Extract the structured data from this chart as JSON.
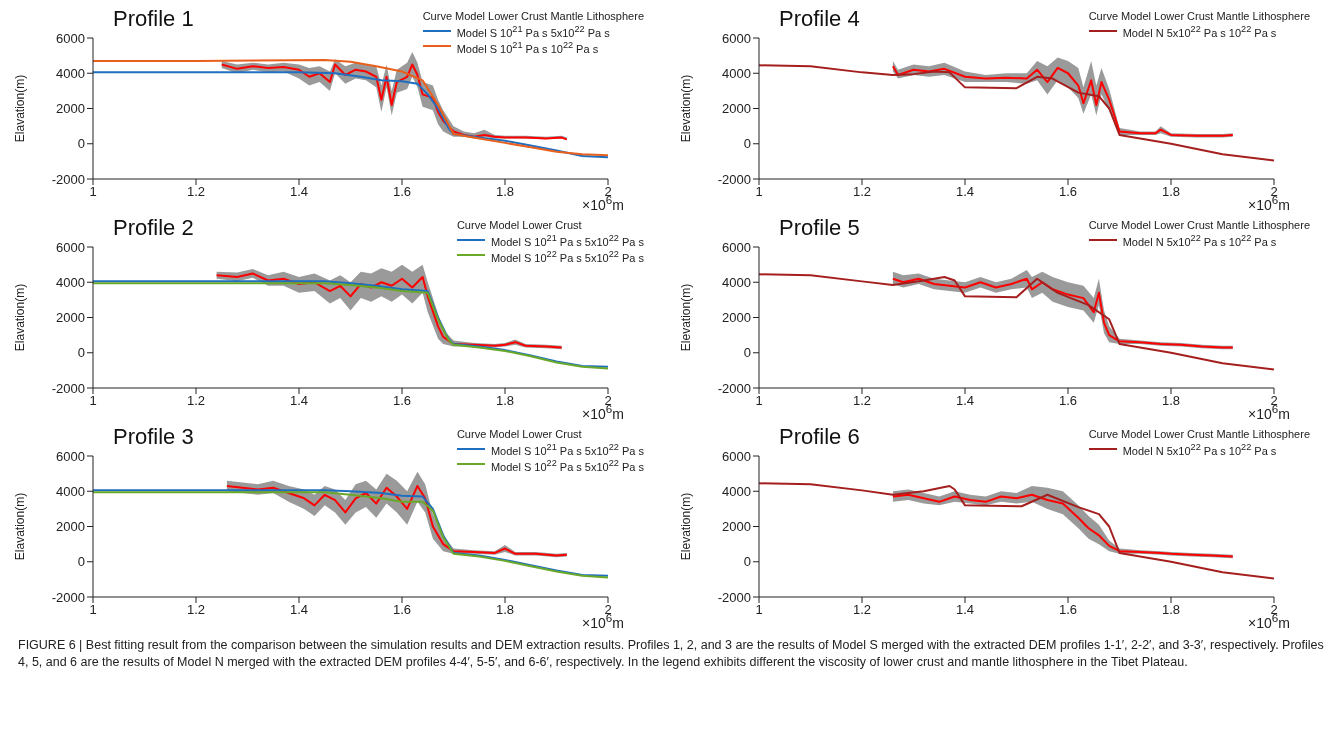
{
  "chart_data": [
    {
      "type": "line",
      "title": "Profile 1",
      "xlabel": "×10$^{6}$m",
      "ylabel": "Elavation(m)",
      "legend_title": "Curve Model Lower Crust Mantle Lithosphere",
      "legend": "top right",
      "xlim": [
        1,
        2
      ],
      "xticks": [
        1,
        1.2,
        1.4,
        1.6,
        1.8,
        2
      ],
      "ylim": [
        -2000,
        6000
      ],
      "yticks": [
        -2000,
        0,
        2000,
        4000,
        6000
      ],
      "series": [
        {
          "color": "#ff0000",
          "x": [
            1.25,
            1.28,
            1.31,
            1.34,
            1.37,
            1.4,
            1.42,
            1.44,
            1.46,
            1.47,
            1.49,
            1.51,
            1.53,
            1.55,
            1.56,
            1.57,
            1.58,
            1.59,
            1.61,
            1.62,
            1.63,
            1.64,
            1.66,
            1.67,
            1.68,
            1.7,
            1.72,
            1.74,
            1.76,
            1.78,
            1.8,
            1.84,
            1.88,
            1.91,
            1.92
          ],
          "values": [
            4500,
            4250,
            4400,
            4300,
            4350,
            4200,
            3800,
            4000,
            3500,
            4500,
            3900,
            4200,
            4100,
            3800,
            2500,
            3800,
            2200,
            3500,
            3800,
            4500,
            3900,
            2800,
            2600,
            1800,
            1300,
            700,
            500,
            400,
            500,
            400,
            350,
            350,
            300,
            350,
            250
          ],
          "lower": [
            4300,
            4000,
            4200,
            4050,
            4100,
            3700,
            3300,
            3500,
            3000,
            4000,
            3400,
            3700,
            3600,
            3200,
            1800,
            3200,
            1600,
            2900,
            3100,
            3800,
            3200,
            2100,
            1900,
            1100,
            700,
            400,
            400,
            300,
            400,
            300,
            300,
            300,
            250,
            300,
            200
          ],
          "upper": [
            4700,
            4500,
            4600,
            4500,
            4600,
            4500,
            4300,
            4400,
            4100,
            4800,
            4400,
            4600,
            4500,
            4400,
            3300,
            4500,
            3000,
            4200,
            4600,
            5200,
            4600,
            3500,
            3300,
            2500,
            1900,
            1000,
            700,
            600,
            800,
            500,
            450,
            450,
            400,
            450,
            350
          ]
        },
        {
          "name": "Model S 10$^{21}$ Pa s 5x10$^{22}$ Pa s",
          "color": "#1f6fc0",
          "x": [
            1,
            1.2,
            1.4,
            1.47,
            1.52,
            1.56,
            1.6,
            1.63,
            1.65,
            1.67,
            1.69,
            1.7,
            1.75,
            1.8,
            1.85,
            1.9,
            1.95,
            2
          ],
          "values": [
            4050,
            4050,
            4050,
            4000,
            3800,
            3600,
            3550,
            3400,
            2800,
            2000,
            900,
            550,
            350,
            170,
            -100,
            -380,
            -700,
            -760
          ]
        },
        {
          "name": "Model S 10$^{21}$ Pa s 10$^{22}$ Pa s",
          "color": "#e8601c",
          "x": [
            1,
            1.2,
            1.45,
            1.5,
            1.55,
            1.6,
            1.64,
            1.67,
            1.7,
            1.75,
            1.8,
            1.85,
            1.9,
            1.95,
            2
          ],
          "values": [
            4700,
            4700,
            4750,
            4650,
            4400,
            4100,
            3600,
            2200,
            550,
            300,
            50,
            -200,
            -450,
            -600,
            -650
          ]
        }
      ]
    },
    {
      "type": "line",
      "title": "Profile 2",
      "xlabel": "×10$^{6}$m",
      "ylabel": "Elavation(m)",
      "legend_title": "Curve Model Lower Crust",
      "legend": "top right",
      "xlim": [
        1,
        2
      ],
      "xticks": [
        1,
        1.2,
        1.4,
        1.6,
        1.8,
        2
      ],
      "ylim": [
        -2000,
        6000
      ],
      "yticks": [
        -2000,
        0,
        2000,
        4000,
        6000
      ],
      "series": [
        {
          "color": "#ff0000",
          "x": [
            1.24,
            1.28,
            1.31,
            1.34,
            1.37,
            1.4,
            1.43,
            1.46,
            1.48,
            1.5,
            1.52,
            1.54,
            1.56,
            1.58,
            1.6,
            1.62,
            1.64,
            1.65,
            1.67,
            1.68,
            1.7,
            1.74,
            1.78,
            1.8,
            1.82,
            1.84,
            1.88,
            1.91
          ],
          "values": [
            4400,
            4300,
            4500,
            4100,
            4200,
            3900,
            4000,
            3500,
            3800,
            3200,
            3900,
            3700,
            4000,
            3800,
            4200,
            3700,
            4300,
            3200,
            1500,
            900,
            500,
            450,
            400,
            450,
            600,
            400,
            350,
            300
          ],
          "lower": [
            4200,
            4050,
            4250,
            3800,
            3800,
            3400,
            3500,
            2800,
            3100,
            2400,
            3100,
            2900,
            3200,
            2900,
            3300,
            2800,
            3400,
            2300,
            800,
            500,
            350,
            350,
            300,
            350,
            450,
            300,
            250,
            200
          ],
          "upper": [
            4600,
            4550,
            4750,
            4400,
            4600,
            4300,
            4500,
            4100,
            4400,
            4000,
            4600,
            4500,
            4800,
            4600,
            5000,
            4600,
            5000,
            4000,
            2200,
            1300,
            700,
            550,
            500,
            550,
            750,
            500,
            450,
            400
          ]
        },
        {
          "name": "Model S 10$^{21}$ Pa s 5x10$^{22}$ Pa s",
          "color": "#1f6fc0",
          "x": [
            1,
            1.2,
            1.45,
            1.5,
            1.55,
            1.6,
            1.65,
            1.67,
            1.69,
            1.7,
            1.75,
            1.8,
            1.85,
            1.9,
            1.95,
            2
          ],
          "values": [
            4050,
            4050,
            4050,
            3950,
            3800,
            3600,
            3500,
            2000,
            800,
            500,
            350,
            150,
            -150,
            -500,
            -750,
            -800
          ]
        },
        {
          "name": "Model S 10$^{22}$ Pa s 5x10$^{22}$ Pa s",
          "color": "#6aa82a",
          "x": [
            1,
            1.2,
            1.45,
            1.5,
            1.55,
            1.6,
            1.65,
            1.67,
            1.69,
            1.7,
            1.75,
            1.8,
            1.85,
            1.9,
            1.95,
            2
          ],
          "values": [
            3950,
            3950,
            3950,
            3850,
            3700,
            3500,
            3400,
            1900,
            750,
            450,
            300,
            100,
            -200,
            -550,
            -800,
            -900
          ]
        }
      ]
    },
    {
      "type": "line",
      "title": "Profile 3",
      "xlabel": "×10$^{6}$m",
      "ylabel": "Elavation(m)",
      "legend_title": "Curve Model Lower Crust",
      "legend": "top right",
      "xlim": [
        1,
        2
      ],
      "xticks": [
        1,
        1.2,
        1.4,
        1.6,
        1.8,
        2
      ],
      "ylim": [
        -2000,
        6000
      ],
      "yticks": [
        -2000,
        0,
        2000,
        4000,
        6000
      ],
      "series": [
        {
          "color": "#ff0000",
          "x": [
            1.26,
            1.29,
            1.32,
            1.35,
            1.38,
            1.41,
            1.43,
            1.45,
            1.47,
            1.49,
            1.51,
            1.53,
            1.55,
            1.57,
            1.59,
            1.61,
            1.63,
            1.645,
            1.66,
            1.68,
            1.7,
            1.74,
            1.78,
            1.8,
            1.82,
            1.86,
            1.9,
            1.92
          ],
          "values": [
            4300,
            4200,
            4100,
            4200,
            3900,
            3600,
            3200,
            3800,
            3500,
            2800,
            3600,
            3900,
            3300,
            4200,
            3700,
            3000,
            4300,
            3600,
            2000,
            1000,
            600,
            550,
            500,
            750,
            450,
            450,
            350,
            400
          ],
          "lower": [
            4000,
            3900,
            3800,
            3900,
            3400,
            3000,
            2600,
            3200,
            2800,
            2100,
            2800,
            3100,
            2500,
            3300,
            2800,
            2100,
            3400,
            2800,
            1300,
            600,
            450,
            450,
            400,
            550,
            350,
            350,
            250,
            300
          ],
          "upper": [
            4600,
            4500,
            4400,
            4600,
            4300,
            4100,
            3800,
            4300,
            4100,
            3500,
            4400,
            4600,
            4100,
            5000,
            4600,
            4000,
            5100,
            4400,
            2700,
            1500,
            750,
            650,
            600,
            950,
            550,
            550,
            450,
            500
          ]
        },
        {
          "name": "Model S 10$^{21}$ Pa s 5x10$^{22}$ Pa s",
          "color": "#1f6fc0",
          "x": [
            1,
            1.2,
            1.45,
            1.5,
            1.56,
            1.6,
            1.64,
            1.66,
            1.68,
            1.7,
            1.75,
            1.8,
            1.85,
            1.9,
            1.95,
            2
          ],
          "values": [
            4050,
            4050,
            4050,
            4000,
            3900,
            3750,
            3700,
            3000,
            1500,
            500,
            350,
            100,
            -200,
            -500,
            -750,
            -800
          ]
        },
        {
          "name": "Model S 10$^{22}$ Pa s 5x10$^{22}$ Pa s",
          "color": "#6aa82a",
          "x": [
            1,
            1.2,
            1.45,
            1.5,
            1.56,
            1.6,
            1.64,
            1.66,
            1.68,
            1.7,
            1.75,
            1.8,
            1.85,
            1.9,
            1.95,
            2
          ],
          "values": [
            3950,
            3950,
            3950,
            3800,
            3600,
            3400,
            3400,
            2900,
            1400,
            450,
            300,
            50,
            -250,
            -550,
            -800,
            -900
          ]
        }
      ]
    },
    {
      "type": "line",
      "title": "Profile 4",
      "xlabel": "×10$^{6}$m",
      "ylabel": "Elevation(m)",
      "legend_title": "Curve Model Lower Crust Mantle Lithosphere",
      "legend": "top right",
      "xlim": [
        1,
        2
      ],
      "xticks": [
        1,
        1.2,
        1.4,
        1.6,
        1.8,
        2
      ],
      "ylim": [
        -2000,
        6000
      ],
      "yticks": [
        -2000,
        0,
        2000,
        4000,
        6000
      ],
      "series": [
        {
          "color": "#ff0000",
          "x": [
            1.26,
            1.27,
            1.3,
            1.33,
            1.36,
            1.4,
            1.44,
            1.48,
            1.52,
            1.54,
            1.56,
            1.58,
            1.6,
            1.62,
            1.63,
            1.645,
            1.655,
            1.665,
            1.68,
            1.7,
            1.74,
            1.77,
            1.78,
            1.8,
            1.85,
            1.9,
            1.92
          ],
          "values": [
            4400,
            3900,
            4200,
            4100,
            4250,
            3800,
            3700,
            3750,
            3700,
            4200,
            3500,
            4300,
            4000,
            3300,
            2300,
            3600,
            2200,
            3500,
            2500,
            700,
            600,
            600,
            800,
            500,
            450,
            450,
            500
          ],
          "lower": [
            4100,
            3700,
            3900,
            3800,
            3900,
            3500,
            3500,
            3500,
            3400,
            3600,
            2800,
            3600,
            3200,
            2600,
            1700,
            2800,
            1600,
            2800,
            1900,
            500,
            500,
            500,
            600,
            400,
            350,
            350,
            400
          ],
          "upper": [
            4700,
            4200,
            4500,
            4400,
            4600,
            4100,
            3900,
            4000,
            4000,
            4700,
            4400,
            4900,
            4700,
            4300,
            3200,
            4700,
            3300,
            4300,
            3100,
            900,
            700,
            700,
            1000,
            600,
            550,
            550,
            600
          ]
        },
        {
          "name": "Model N 5x10$^{22}$ Pa s 10$^{22}$ Pa s",
          "color": "#a51f1f",
          "x": [
            1,
            1.1,
            1.2,
            1.26,
            1.3,
            1.34,
            1.37,
            1.4,
            1.5,
            1.54,
            1.57,
            1.62,
            1.66,
            1.68,
            1.7,
            1.8,
            1.9,
            2
          ],
          "values": [
            4450,
            4400,
            4050,
            3900,
            3950,
            4100,
            4050,
            3200,
            3150,
            3800,
            3700,
            2900,
            2700,
            2000,
            500,
            0,
            -600,
            -950
          ]
        }
      ]
    },
    {
      "type": "line",
      "title": "Profile 5",
      "xlabel": "×10$^{6}$m",
      "ylabel": "Elevation(m)",
      "legend_title": "Curve Model Lower Crust Mantle Lithosphere",
      "legend": "top right",
      "xlim": [
        1,
        2
      ],
      "xticks": [
        1,
        1.2,
        1.4,
        1.6,
        1.8,
        2
      ],
      "ylim": [
        -2000,
        6000
      ],
      "yticks": [
        -2000,
        0,
        2000,
        4000,
        6000
      ],
      "series": [
        {
          "color": "#ff0000",
          "x": [
            1.26,
            1.28,
            1.31,
            1.34,
            1.37,
            1.4,
            1.43,
            1.46,
            1.49,
            1.52,
            1.53,
            1.55,
            1.57,
            1.6,
            1.63,
            1.65,
            1.66,
            1.67,
            1.68,
            1.7,
            1.74,
            1.78,
            1.82,
            1.86,
            1.9,
            1.92
          ],
          "values": [
            4200,
            4000,
            4200,
            3900,
            3800,
            3700,
            4000,
            3700,
            3900,
            4200,
            3600,
            4000,
            3600,
            3300,
            3100,
            2300,
            3400,
            1700,
            1000,
            650,
            600,
            500,
            450,
            350,
            300,
            300
          ],
          "lower": [
            3900,
            3700,
            3900,
            3600,
            3500,
            3400,
            3700,
            3400,
            3600,
            3700,
            3100,
            3400,
            2900,
            2600,
            2400,
            1700,
            2700,
            1100,
            600,
            500,
            500,
            400,
            350,
            250,
            200,
            200
          ],
          "upper": [
            4600,
            4400,
            4500,
            4200,
            4100,
            4000,
            4300,
            4000,
            4200,
            4700,
            4300,
            4600,
            4300,
            4000,
            3800,
            3100,
            4200,
            2400,
            1500,
            800,
            700,
            600,
            550,
            450,
            400,
            400
          ]
        },
        {
          "name": "Model N 5x10$^{22}$ Pa s 10$^{22}$ Pa s",
          "color": "#a51f1f",
          "x": [
            1,
            1.1,
            1.2,
            1.26,
            1.32,
            1.36,
            1.38,
            1.4,
            1.5,
            1.54,
            1.58,
            1.64,
            1.68,
            1.7,
            1.8,
            1.9,
            2
          ],
          "values": [
            4450,
            4400,
            4050,
            3850,
            4100,
            4300,
            4100,
            3200,
            3150,
            4200,
            3400,
            2700,
            1900,
            500,
            0,
            -600,
            -950
          ]
        }
      ]
    },
    {
      "type": "line",
      "title": "Profile 6",
      "xlabel": "×10$^{6}$m",
      "ylabel": "Elevation(m)",
      "legend_title": "Curve Model Lower Crust Mantle Lithosphere",
      "legend": "top right",
      "xlim": [
        1,
        2
      ],
      "xticks": [
        1,
        1.2,
        1.4,
        1.6,
        1.8,
        2
      ],
      "ylim": [
        -2000,
        6000
      ],
      "yticks": [
        -2000,
        0,
        2000,
        4000,
        6000
      ],
      "annotations": [
        "FIGURE 6 | Best fitting result from the comparison between the simulation results and DEM extraction results. Profiles 1, 2, and 3 are the results of Model S merged with the extracted DEM profiles 1-1′, 2-2′, and 3-3′, respectively. Profiles 4, 5, and 6 are the results of Model N merged with the extracted DEM profiles 4-4′, 5-5′, and 6-6′, respectively. In the legend exhibits different the viscosity of lower crust and mantle lithosphere in the Tibet Plateau."
      ],
      "series": [
        {
          "color": "#ff0000",
          "x": [
            1.26,
            1.29,
            1.32,
            1.35,
            1.38,
            1.41,
            1.44,
            1.47,
            1.5,
            1.53,
            1.56,
            1.59,
            1.62,
            1.64,
            1.66,
            1.68,
            1.7,
            1.74,
            1.78,
            1.8,
            1.84,
            1.88,
            1.92
          ],
          "values": [
            3700,
            3800,
            3600,
            3400,
            3700,
            3500,
            3400,
            3700,
            3600,
            3800,
            3500,
            3300,
            2500,
            1900,
            1500,
            900,
            600,
            550,
            500,
            450,
            400,
            350,
            300
          ],
          "lower": [
            3400,
            3500,
            3300,
            3200,
            3400,
            3300,
            3200,
            3400,
            3300,
            3400,
            3000,
            2700,
            1900,
            1300,
            1000,
            600,
            450,
            450,
            400,
            350,
            300,
            250,
            200
          ],
          "upper": [
            4000,
            4100,
            3900,
            3700,
            4000,
            3800,
            3700,
            4000,
            3900,
            4300,
            4200,
            4000,
            3200,
            2600,
            2100,
            1200,
            750,
            650,
            600,
            550,
            500,
            450,
            400
          ]
        },
        {
          "name": "Model N 5x10$^{22}$ Pa s 10$^{22}$ Pa s",
          "color": "#a51f1f",
          "x": [
            1,
            1.1,
            1.2,
            1.26,
            1.32,
            1.37,
            1.38,
            1.4,
            1.51,
            1.56,
            1.62,
            1.66,
            1.68,
            1.7,
            1.8,
            1.9,
            2
          ],
          "values": [
            4450,
            4400,
            4050,
            3800,
            4000,
            4300,
            4100,
            3200,
            3150,
            3800,
            3100,
            2700,
            2000,
            500,
            0,
            -600,
            -950
          ]
        }
      ]
    }
  ]
}
